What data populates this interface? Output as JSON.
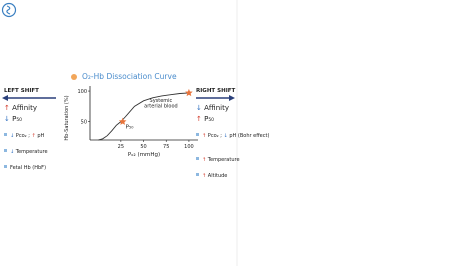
{
  "chart_data": {
    "type": "line",
    "title": "O₂-Hb Dissociation Curve",
    "x_label": "Pₒ₂ (mmHg)",
    "y_label": "Hb-Saturation (%)",
    "x": [
      0,
      5,
      10,
      15,
      20,
      25,
      30,
      40,
      50,
      60,
      70,
      80,
      90,
      100
    ],
    "series": [
      {
        "name": "O₂-Hb",
        "color": "#333333",
        "values": [
          20,
          22,
          27,
          35,
          44,
          50,
          58,
          75,
          84,
          89,
          92,
          94,
          96,
          97
        ]
      }
    ],
    "xlim": [
      -9,
      110
    ],
    "ylim": [
      20,
      105
    ],
    "xticks": [
      25,
      50,
      75,
      100
    ],
    "yticks": [
      50,
      100
    ],
    "annotations": [
      {
        "text": "P₅₀",
        "x": 27,
        "y": 50
      },
      {
        "text": "Systemic arterial blood",
        "x": 100,
        "y": 97
      }
    ]
  },
  "left": {
    "heading": "LEFT SHIFT",
    "main": [
      "↑ Affinity",
      "↓ P₅₀"
    ],
    "items": [
      "↓ Pco₂ ; ↑ pH",
      "↓ Temperature",
      "Fetal Hb (HbF)"
    ]
  },
  "right": {
    "heading": "RIGHT SHIFT",
    "main": [
      "↓ Affinity",
      "↑ P₅₀"
    ],
    "items": [
      "↑ Pco₂ ; ↓ pH (Bohr effect)",
      "↑ Temperature",
      "↑ Altitude"
    ]
  }
}
